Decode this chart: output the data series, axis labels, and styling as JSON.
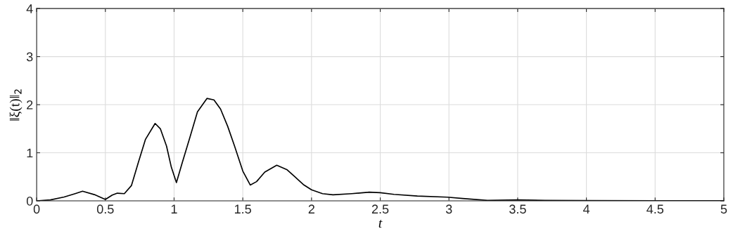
{
  "chart_data": {
    "type": "line",
    "xlabel": "t",
    "ylabel": "‖ξ(t)‖$_{2}$",
    "series": [
      {
        "color": "#000000",
        "x": [
          0,
          0.1,
          0.2,
          0.28,
          0.334,
          0.42,
          0.5,
          0.55,
          0.587,
          0.638,
          0.69,
          0.74,
          0.792,
          0.862,
          0.9,
          0.945,
          0.98,
          1.017,
          1.06,
          1.116,
          1.17,
          1.239,
          1.29,
          1.338,
          1.39,
          1.44,
          1.5,
          1.554,
          1.6,
          1.66,
          1.747,
          1.82,
          1.883,
          1.94,
          2.0,
          2.08,
          2.156,
          2.293,
          2.42,
          2.5,
          2.6,
          2.77,
          2.99,
          3.1,
          3.28,
          3.5,
          3.7,
          4.0,
          4.5,
          5.0
        ],
        "values": [
          0,
          0.02,
          0.08,
          0.15,
          0.2,
          0.13,
          0.03,
          0.12,
          0.16,
          0.15,
          0.32,
          0.8,
          1.28,
          1.61,
          1.5,
          1.14,
          0.7,
          0.38,
          0.8,
          1.33,
          1.85,
          2.13,
          2.1,
          1.91,
          1.55,
          1.14,
          0.62,
          0.33,
          0.4,
          0.6,
          0.74,
          0.65,
          0.49,
          0.34,
          0.23,
          0.15,
          0.125,
          0.15,
          0.18,
          0.17,
          0.135,
          0.1,
          0.077,
          0.05,
          0.01,
          0.02,
          0.01,
          0.005,
          0.003,
          0.002
        ]
      }
    ],
    "xlim": [
      0,
      5
    ],
    "xticks": [
      0,
      0.5,
      1,
      1.5,
      2,
      2.5,
      3,
      3.5,
      4,
      4.5,
      5
    ],
    "ylim": [
      0,
      4
    ],
    "yticks": [
      0,
      1,
      2,
      3,
      4
    ],
    "grid": true,
    "marker": "none",
    "line_style": "solid"
  }
}
